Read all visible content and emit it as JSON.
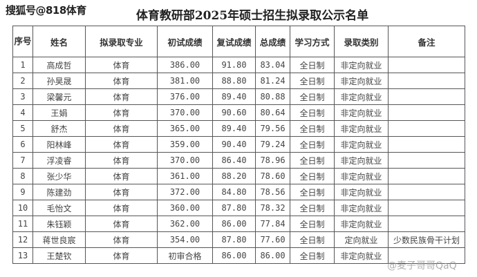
{
  "watermark_top": "搜狐号@818体育",
  "watermark_bottom": "@麦子哥哥QaQ",
  "title": "体育教研部2025年硕士招生拟录取公示名单",
  "columns": [
    "序号",
    "姓名",
    "拟录取专业",
    "初试成绩",
    "复试成绩",
    "总成绩",
    "学习方式",
    "录取类别",
    "备注"
  ],
  "rows": [
    [
      "1",
      "高成哲",
      "体育",
      "386.00",
      "91.80",
      "83.04",
      "全日制",
      "非定向就业",
      ""
    ],
    [
      "2",
      "孙昊晟",
      "体育",
      "381.00",
      "88.80",
      "81.24",
      "全日制",
      "非定向就业",
      ""
    ],
    [
      "3",
      "梁馨元",
      "体育",
      "376.00",
      "89.40",
      "80.88",
      "全日制",
      "非定向就业",
      ""
    ],
    [
      "4",
      "王娟",
      "体育",
      "370.00",
      "90.60",
      "80.64",
      "全日制",
      "非定向就业",
      ""
    ],
    [
      "5",
      "舒杰",
      "体育",
      "365.00",
      "89.40",
      "79.56",
      "全日制",
      "非定向就业",
      ""
    ],
    [
      "6",
      "阳林峰",
      "体育",
      "359.00",
      "90.40",
      "79.24",
      "全日制",
      "非定向就业",
      ""
    ],
    [
      "7",
      "浮凌睿",
      "体育",
      "370.00",
      "86.40",
      "78.96",
      "全日制",
      "非定向就业",
      ""
    ],
    [
      "8",
      "张少华",
      "体育",
      "361.00",
      "88.20",
      "78.60",
      "全日制",
      "非定向就业",
      ""
    ],
    [
      "9",
      "陈建劲",
      "体育",
      "372.00",
      "84.80",
      "78.56",
      "全日制",
      "非定向就业",
      ""
    ],
    [
      "10",
      "毛怡文",
      "体育",
      "360.00",
      "87.80",
      "78.32",
      "全日制",
      "非定向就业",
      ""
    ],
    [
      "11",
      "朱钰颖",
      "体育",
      "362.00",
      "86.00",
      "77.84",
      "全日制",
      "非定向就业",
      ""
    ],
    [
      "12",
      "蒋世良宸",
      "体育",
      "354.00",
      "87.80",
      "77.60",
      "全日制",
      "定向就业",
      "少数民族骨干计划"
    ],
    [
      "13",
      "王楚钦",
      "体育",
      "初审合格",
      "86.00",
      "86.00",
      "全日制",
      "非定向就业",
      ""
    ]
  ]
}
